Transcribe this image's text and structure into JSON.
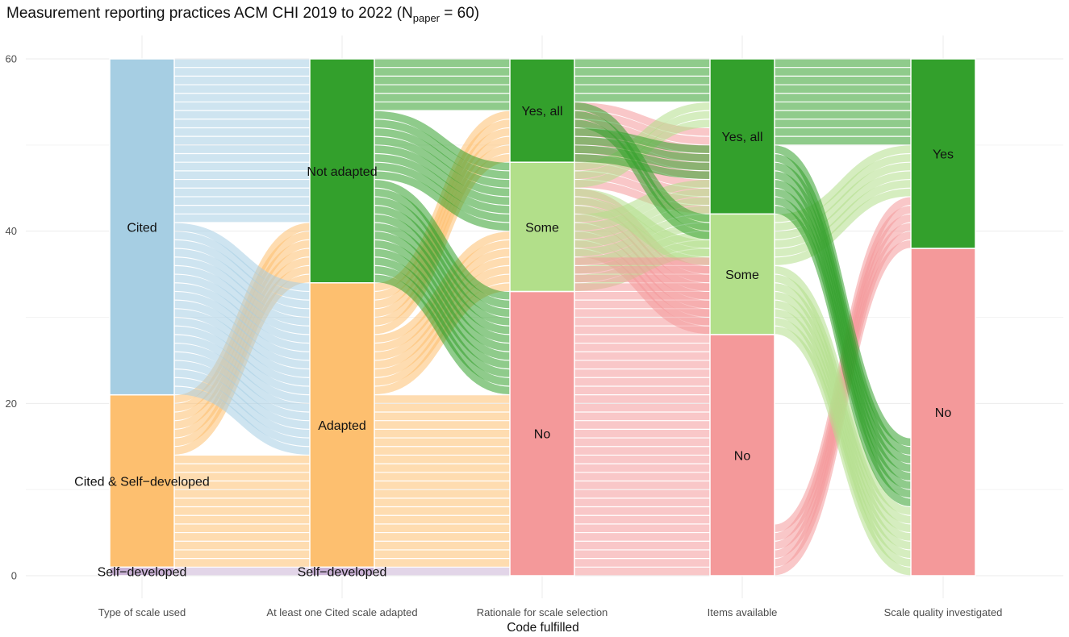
{
  "chart_data": {
    "type": "alluvial",
    "title": "Measurement reporting practices ACM CHI 2019 to 2022",
    "title_n_prefix": "N",
    "title_n_subscript": "paper",
    "title_n_value": "= 60",
    "xlabel": "Code fulfilled",
    "ylabel": "",
    "ylim": [
      0,
      60
    ],
    "y_ticks": [
      0,
      20,
      40,
      60
    ],
    "y_minor_ticks": [
      10,
      30,
      50
    ],
    "axes": [
      {
        "label": "Type of scale used",
        "strata": [
          {
            "name": "Self−developed",
            "count": 1,
            "color": "#cab2d6"
          },
          {
            "name": "Cited & Self−developed",
            "count": 20,
            "color": "#fdbf6f"
          },
          {
            "name": "Cited",
            "count": 39,
            "color": "#a6cee3"
          }
        ]
      },
      {
        "label": "At least one Cited scale adapted",
        "strata": [
          {
            "name": "Self−developed",
            "count": 1,
            "color": "#cab2d6"
          },
          {
            "name": "Adapted",
            "count": 33,
            "color": "#fdbf6f"
          },
          {
            "name": "Not adapted",
            "count": 26,
            "color": "#33a02c"
          }
        ]
      },
      {
        "label": "Rationale for scale selection",
        "strata": [
          {
            "name": "No",
            "count": 33,
            "color": "#f4999a"
          },
          {
            "name": "Some",
            "count": 15,
            "color": "#b2df8a"
          },
          {
            "name": "Yes, all",
            "count": 12,
            "color": "#33a02c"
          }
        ]
      },
      {
        "label": "Items available",
        "strata": [
          {
            "name": "No",
            "count": 28,
            "color": "#f4999a"
          },
          {
            "name": "Some",
            "count": 14,
            "color": "#b2df8a"
          },
          {
            "name": "Yes, all",
            "count": 18,
            "color": "#33a02c"
          }
        ]
      },
      {
        "label": "Scale quality investigated",
        "strata": [
          {
            "name": "No",
            "count": 38,
            "color": "#f4999a"
          },
          {
            "name": "Yes",
            "count": 22,
            "color": "#33a02c"
          }
        ]
      }
    ],
    "flows": [
      {
        "source": "Self−developed",
        "target": "Self−developed",
        "count": 1,
        "color": "#cab2d6"
      },
      {
        "source": "Cited & Self−developed",
        "target": "Adapted",
        "count": 13,
        "color": "#fdbf6f"
      },
      {
        "source": "Cited & Self−developed",
        "target": "Not adapted",
        "count": 7,
        "color": "#fdbf6f"
      },
      {
        "source": "Cited",
        "target": "Adapted",
        "count": 20,
        "color": "#a6cee3"
      },
      {
        "source": "Cited",
        "target": "Not adapted",
        "count": 19,
        "color": "#a6cee3"
      },
      {
        "source": "Self−developed",
        "target": "No",
        "count": 1,
        "color": "#cab2d6"
      },
      {
        "source": "Adapted",
        "target": "No",
        "count": 20,
        "color": "#fdbf6f"
      },
      {
        "source": "Adapted",
        "target": "Some",
        "count": 7,
        "color": "#fdbf6f"
      },
      {
        "source": "Adapted",
        "target": "Yes, all",
        "count": 6,
        "color": "#fdbf6f"
      },
      {
        "source": "Not adapted",
        "target": "No",
        "count": 12,
        "color": "#33a02c"
      },
      {
        "source": "Not adapted",
        "target": "Some",
        "count": 8,
        "color": "#33a02c"
      },
      {
        "source": "Not adapted",
        "target": "Yes, all",
        "count": 6,
        "color": "#33a02c"
      },
      {
        "source": "No",
        "target": "No",
        "count": 15,
        "color": "#f4999a"
      },
      {
        "source": "No",
        "target": "Some",
        "count": 8,
        "color": "#f4999a"
      },
      {
        "source": "No",
        "target": "Yes, all",
        "count": 10,
        "color": "#f4999a"
      },
      {
        "source": "Some",
        "target": "No",
        "count": 9,
        "color": "#b2df8a"
      },
      {
        "source": "Some",
        "target": "Some",
        "count": 3,
        "color": "#b2df8a"
      },
      {
        "source": "Some",
        "target": "Yes, all",
        "count": 3,
        "color": "#b2df8a"
      },
      {
        "source": "Yes, all",
        "target": "No",
        "count": 4,
        "color": "#33a02c"
      },
      {
        "source": "Yes, all",
        "target": "Some",
        "count": 3,
        "color": "#33a02c"
      },
      {
        "source": "Yes, all",
        "target": "Yes, all",
        "count": 5,
        "color": "#33a02c"
      },
      {
        "source": "No",
        "target": "No",
        "count": 22,
        "color": "#f4999a"
      },
      {
        "source": "No",
        "target": "Yes",
        "count": 6,
        "color": "#f4999a"
      },
      {
        "source": "Some",
        "target": "No",
        "count": 8,
        "color": "#b2df8a"
      },
      {
        "source": "Some",
        "target": "Yes",
        "count": 6,
        "color": "#b2df8a"
      },
      {
        "source": "Yes, all",
        "target": "No",
        "count": 8,
        "color": "#33a02c"
      },
      {
        "source": "Yes, all",
        "target": "Yes",
        "count": 10,
        "color": "#33a02c"
      }
    ]
  }
}
